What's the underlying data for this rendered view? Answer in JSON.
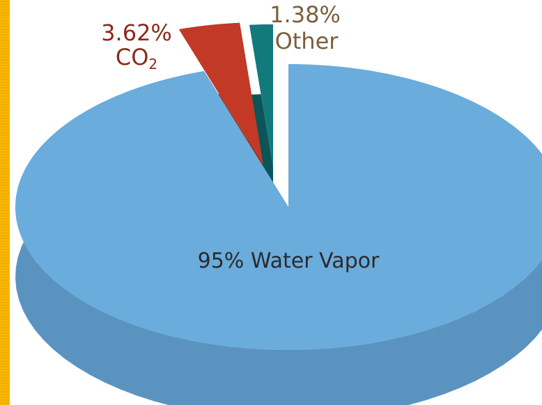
{
  "chart_data": {
    "type": "pie",
    "slices": [
      {
        "label": "Water Vapor",
        "value": 95,
        "value_text": "95%",
        "display": "95% Water Vapor",
        "color": "#6aacdc",
        "side_color": "#5b93c0"
      },
      {
        "label": "CO",
        "label_sub": "2",
        "value": 3.62,
        "value_text": "3.62%",
        "color": "#c23a26",
        "side_color": "#8e2614"
      },
      {
        "label": "Other",
        "value": 1.38,
        "value_text": "1.38%",
        "color": "#137a7c",
        "side_color": "#0b5557"
      }
    ],
    "colors": {
      "other_label": "#7a5f3c",
      "co2_label": "#8b2a1a",
      "main_label": "#2b2b2b"
    }
  }
}
